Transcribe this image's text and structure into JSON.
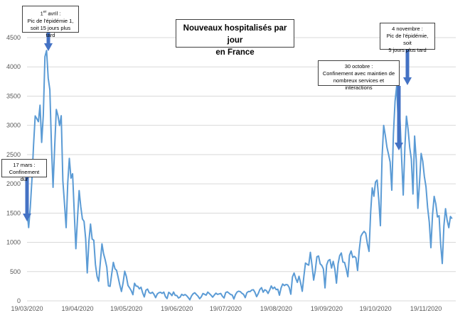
{
  "title": {
    "line1": "Nouveaux hospitalisés par jour",
    "line2": "en France"
  },
  "annotations": {
    "avril": {
      "day": "1",
      "sup": "er",
      "rest": " avril :",
      "line2": "Pic de l'épidémie 1,",
      "line3": "soit 15 jours plus tard"
    },
    "mars": {
      "line1": "17 mars :",
      "line2": "Confinement dur"
    },
    "octobre": {
      "line1": "30 octobre :",
      "line2": "Confinement avec maintien de",
      "line3": "nombreux services et interactions"
    },
    "novembre": {
      "line1": "4 novembre :",
      "line2": "Pic de l'épidémie, soit",
      "line3": "5 jours plus tard"
    }
  },
  "colors": {
    "series": "#5b9bd5",
    "arrow": "#4472c4",
    "grid": "#d9d9d9"
  },
  "chart_data": {
    "type": "line",
    "title": "Nouveaux hospitalisés par jour en France",
    "xlabel": "",
    "ylabel": "",
    "ylim": [
      0,
      4500
    ],
    "grid": true,
    "yticks": [
      "0",
      "500",
      "1000",
      "1500",
      "2000",
      "2500",
      "3000",
      "3500",
      "4000",
      "4500"
    ],
    "xticks": [
      "19/03/2020",
      "19/04/2020",
      "19/05/2020",
      "19/06/2020",
      "19/07/2020",
      "19/08/2020",
      "19/09/2020",
      "19/10/2020",
      "19/11/2020"
    ],
    "start_date": "2020-03-19",
    "series": [
      {
        "name": "",
        "values": [
          1543,
          1252,
          1599,
          2073,
          2666,
          3161,
          3115,
          3063,
          3344,
          2709,
          3173,
          4174,
          4281,
          3808,
          3610,
          2645,
          1941,
          2636,
          3272,
          3166,
          2997,
          3165,
          2051,
          1663,
          1252,
          2022,
          2435,
          2098,
          2172,
          1522,
          891,
          1412,
          1885,
          1611,
          1400,
          1358,
          1059,
          478,
          1015,
          1312,
          1057,
          1036,
          623,
          419,
          335,
          657,
          975,
          808,
          703,
          575,
          256,
          247,
          460,
          658,
          548,
          520,
          394,
          269,
          160,
          308,
          506,
          417,
          263,
          221,
          174,
          105,
          301,
          252,
          249,
          205,
          233,
          138,
          67,
          181,
          201,
          140,
          129,
          147,
          110,
          55,
          118,
          139,
          145,
          127,
          149,
          71,
          39,
          145,
          125,
          90,
          151,
          94,
          91,
          48,
          64,
          112,
          92,
          108,
          88,
          56,
          19,
          83,
          121,
          138,
          108,
          80,
          36,
          69,
          125,
          113,
          97,
          149,
          124,
          96,
          63,
          100,
          131,
          110,
          119,
          126,
          79,
          49,
          141,
          154,
          132,
          109,
          100,
          31,
          108,
          152,
          165,
          156,
          128,
          110,
          54,
          139,
          160,
          159,
          186,
          189,
          144,
          71,
          125,
          194,
          225,
          148,
          189,
          175,
          126,
          186,
          255,
          207,
          234,
          192,
          199,
          97,
          221,
          287,
          261,
          279,
          273,
          229,
          114,
          407,
          476,
          386,
          315,
          420,
          304,
          164,
          422,
          646,
          625,
          610,
          830,
          608,
          354,
          518,
          754,
          766,
          632,
          607,
          547,
          221,
          613,
          689,
          706,
          560,
          676,
          545,
          302,
          634,
          772,
          819,
          662,
          656,
          546,
          413,
          780,
          851,
          742,
          760,
          734,
          518,
          866,
          1102,
          1154,
          1187,
          1153,
          974,
          845,
          1519,
          1931,
          1788,
          2032,
          2065,
          1731,
          1285,
          2446,
          2998,
          2826,
          2626,
          2500,
          2372,
          1891,
          2853,
          3412,
          3673,
          3002,
          3117,
          2447,
          1808,
          2620,
          3157,
          2935,
          2625,
          2421,
          1827,
          2816,
          2409,
          1582,
          2018,
          2520,
          2391,
          2128,
          1950,
          1595,
          1350,
          908,
          1469,
          1786,
          1658,
          1434,
          1455,
          973,
          638,
          1283,
          1575,
          1374,
          1251,
          1442,
          1404
        ]
      }
    ],
    "annotations": [
      {
        "date": "2020-03-17",
        "text": "17 mars : Confinement dur"
      },
      {
        "date": "2020-04-01",
        "text": "1er avril : Pic de l'épidémie 1, soit 15 jours plus tard"
      },
      {
        "date": "2020-10-30",
        "text": "30 octobre : Confinement avec maintien de nombreux services et interactions"
      },
      {
        "date": "2020-11-04",
        "text": "4 novembre : Pic de l'épidémie, soit 5 jours plus tard"
      }
    ]
  }
}
